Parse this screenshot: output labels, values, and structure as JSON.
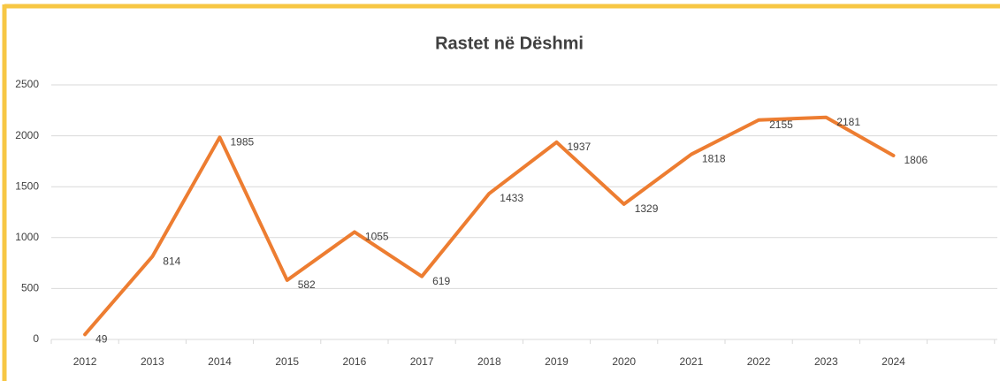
{
  "chart_data": {
    "type": "line",
    "title": "Rastet në Dëshmi",
    "categories": [
      "2012",
      "2013",
      "2014",
      "2015",
      "2016",
      "2017",
      "2018",
      "2019",
      "2020",
      "2021",
      "2022",
      "2023",
      "2024"
    ],
    "values": [
      49,
      814,
      1985,
      582,
      1055,
      619,
      1433,
      1937,
      1329,
      1818,
      2155,
      2181,
      1806
    ],
    "color": "#ed7d31",
    "ylim": [
      0,
      2500
    ],
    "yticks": [
      0,
      500,
      1000,
      1500,
      2000,
      2500
    ],
    "grid": true
  }
}
